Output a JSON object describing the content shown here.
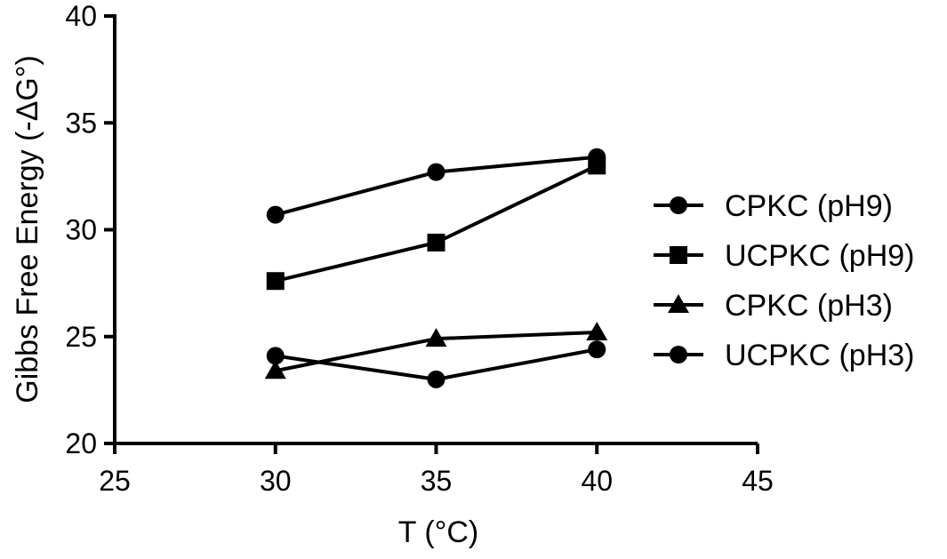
{
  "chart_data": {
    "type": "line",
    "title": "",
    "xlabel": "T (°C)",
    "ylabel": "Gibbs Free Energy (-ΔG°)",
    "xlim": [
      25,
      45
    ],
    "ylim": [
      20,
      40
    ],
    "xticks": [
      25,
      30,
      35,
      40,
      45
    ],
    "yticks": [
      20,
      25,
      30,
      35,
      40
    ],
    "grid": false,
    "legend_position": "right",
    "x": [
      30,
      35,
      40
    ],
    "series": [
      {
        "name": "CPKC (pH9)",
        "marker": "circle",
        "values": [
          30.7,
          32.7,
          33.4
        ]
      },
      {
        "name": "UCPKC (pH9)",
        "marker": "square",
        "values": [
          27.6,
          29.4,
          33.0
        ]
      },
      {
        "name": "CPKC (pH3)",
        "marker": "triangle",
        "values": [
          23.4,
          24.9,
          25.2
        ]
      },
      {
        "name": "UCPKC (pH3)",
        "marker": "circle",
        "values": [
          24.1,
          23.0,
          24.4
        ]
      }
    ],
    "colors": {
      "line": "#000000",
      "marker": "#000000",
      "background": "#ffffff"
    }
  }
}
